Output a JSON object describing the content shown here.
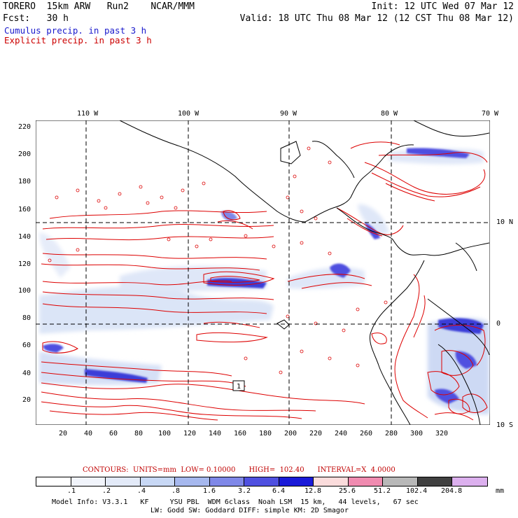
{
  "header": {
    "line1_left": "TORERO  15km ARW   Run2    NCAR/MMM",
    "line1_right": "Init: 12 UTC Wed 07 Mar 12",
    "line2_left": "Fcst:   30 h",
    "line2_right": "Valid: 18 UTC Thu 08 Mar 12 (12 CST Thu 08 Mar 12)",
    "field1": "Cumulus precip. in past 3 h",
    "field2": "Explicit precip. in past 3 h"
  },
  "colors": {
    "field1": "#1a1acc",
    "field2": "#cc0000",
    "contour": "#dd0000",
    "coast": "#000000"
  },
  "map": {
    "top_lon_labels": [
      "110 W",
      "100 W",
      "90 W",
      "80 W",
      "70 W"
    ],
    "right_lat_labels": [
      "10 N",
      "0",
      "10 S"
    ],
    "y_grid_labels": [
      "220",
      "200",
      "180",
      "160",
      "140",
      "120",
      "100",
      "80",
      "60",
      "40",
      "20"
    ],
    "x_grid_labels": [
      "20",
      "40",
      "60",
      "80",
      "100",
      "120",
      "140",
      "160",
      "180",
      "200",
      "220",
      "240",
      "260",
      "280",
      "300",
      "320"
    ],
    "station_marker": "1"
  },
  "contour_info": {
    "text": "CONTOURS:  UNITS=mm  LOW= 0.10000      HIGH=  102.40      INTERVAL=X  4.0000"
  },
  "colorbar": {
    "colors": [
      "#ffffff",
      "#f1f4fb",
      "#e3eaf8",
      "#c8d8f5",
      "#a6b8ee",
      "#7f88e8",
      "#4f50e0",
      "#1a1ad8",
      "#fbdcdc",
      "#f08bb0",
      "#b8b8b8",
      "#404040",
      "#dcb0ee"
    ],
    "labels": [
      ".1",
      ".2",
      ".4",
      ".8",
      "1.6",
      "3.2",
      "6.4",
      "12.8",
      "25.6",
      "51.2",
      "102.4",
      "204.8"
    ],
    "units": "mm"
  },
  "footer": {
    "line1": "Model Info: V3.3.1   KF     YSU PBL  WDM 6class  Noah LSM  15 km,   44 levels,   67 sec",
    "line2": "LW: Godd SW: Goddard DIFF: simple KM: 2D Smagor"
  }
}
